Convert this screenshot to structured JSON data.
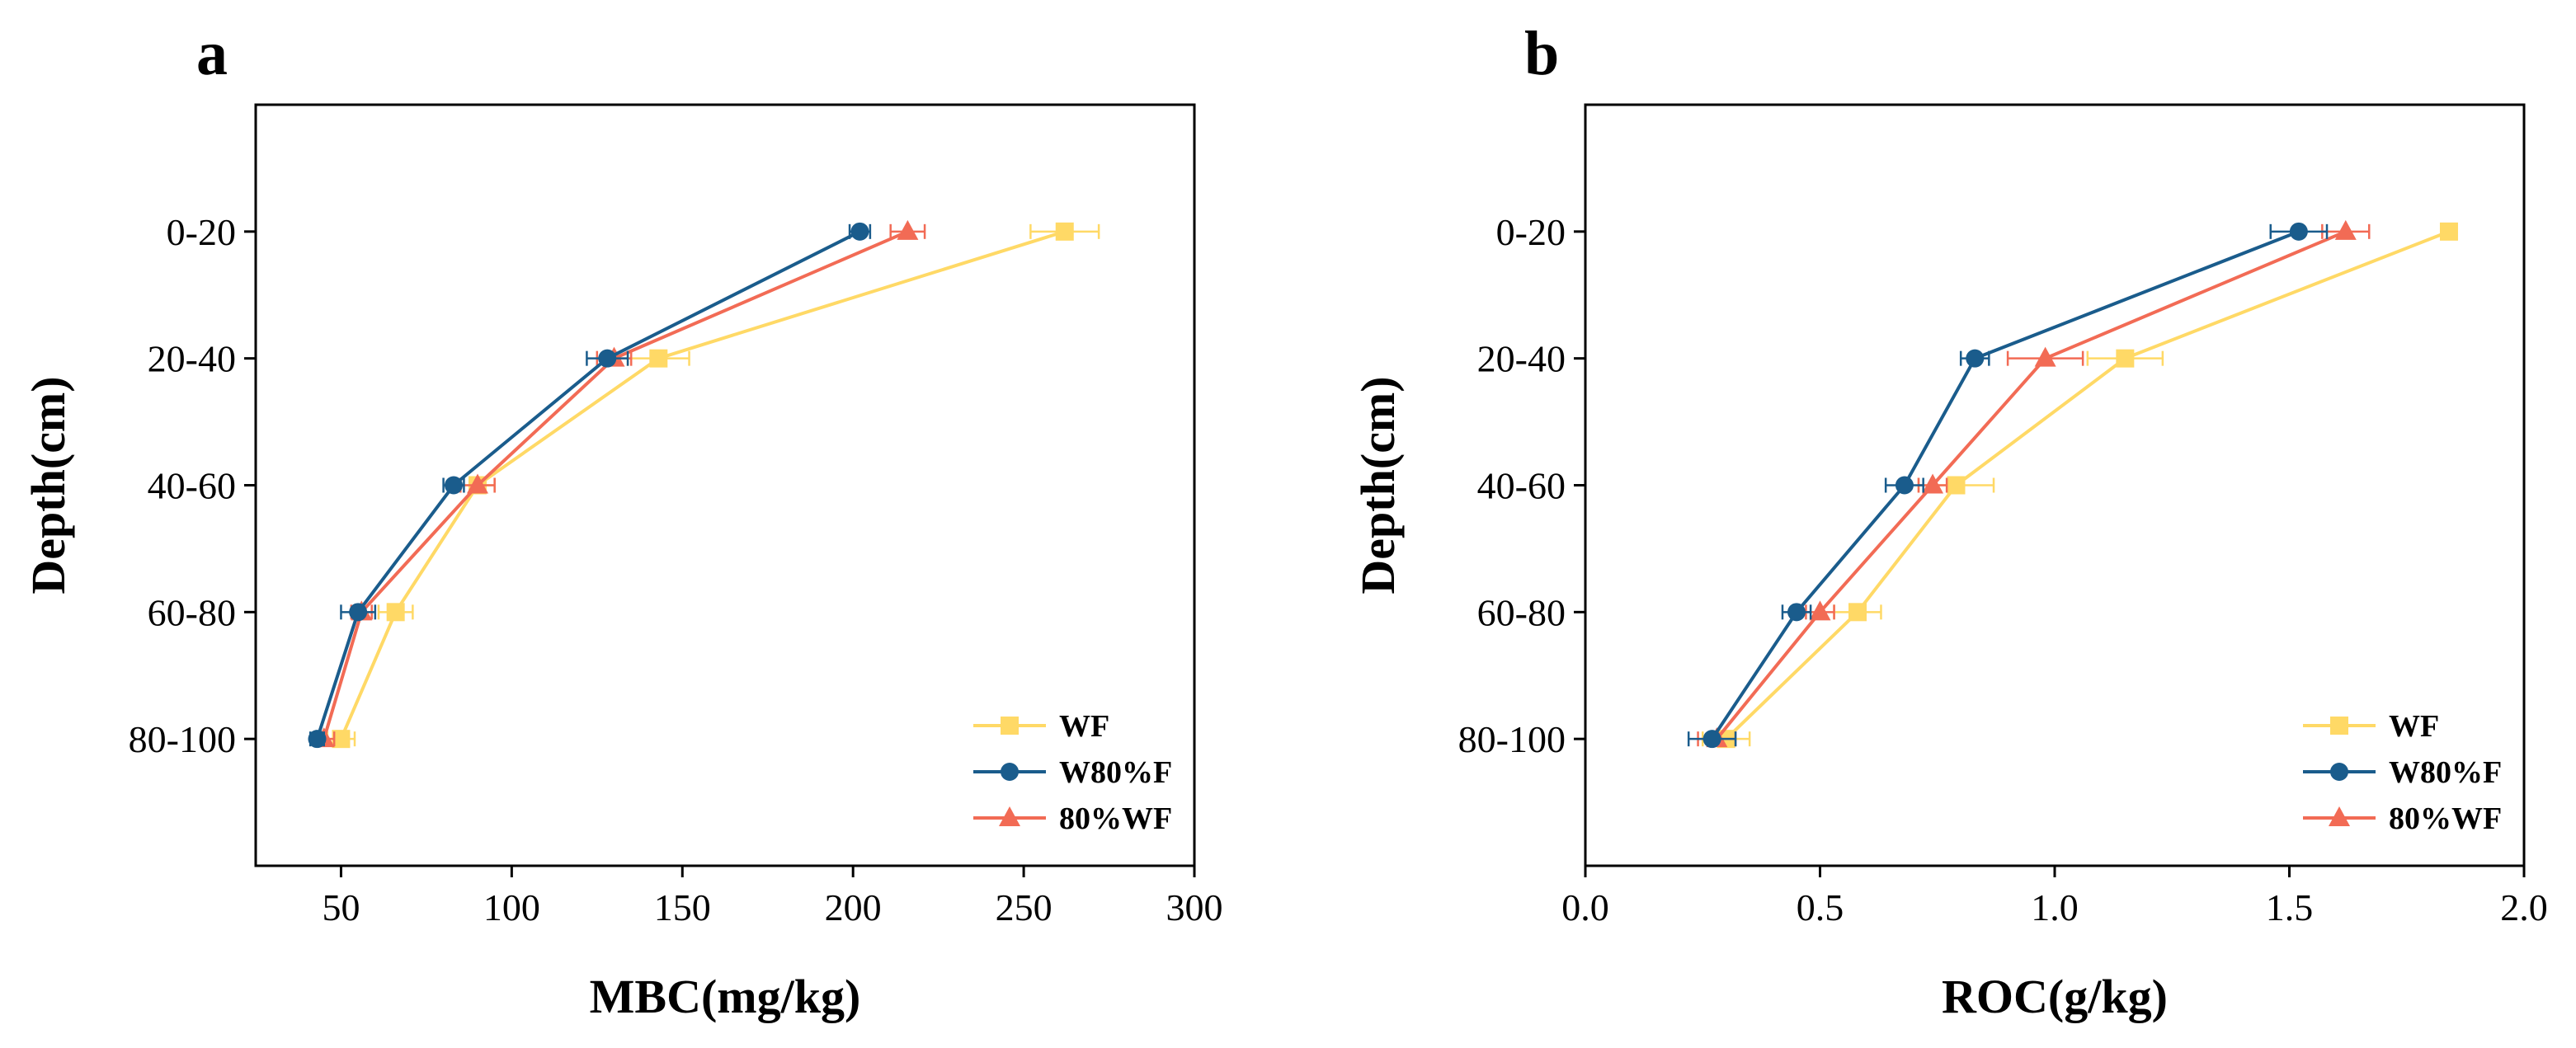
{
  "figure": {
    "colors": {
      "WF": "#FFD966",
      "W80%F": "#1A5C8C",
      "80%WF": "#F26B55"
    },
    "panels": [
      {
        "letter": "a"
      },
      {
        "letter": "b"
      }
    ]
  },
  "chart_data": [
    {
      "type": "line",
      "panel": "a",
      "title": "",
      "xlabel": "MBC(mg/kg)",
      "ylabel": "Depth(cm)",
      "xlim": [
        25,
        300
      ],
      "xticks": [
        50,
        100,
        150,
        200,
        250,
        300
      ],
      "categories": [
        "0-20",
        "20-40",
        "40-60",
        "60-80",
        "80-100"
      ],
      "orientation": "horizontal-values-vertical-categories",
      "legend_position": "bottom-right",
      "series": [
        {
          "name": "WF",
          "marker": "square",
          "values": [
            262,
            143,
            90,
            66,
            50
          ],
          "errors": [
            10,
            9,
            5,
            5,
            4
          ]
        },
        {
          "name": "W80%F",
          "marker": "circle",
          "values": [
            202,
            128,
            83,
            55,
            43
          ],
          "errors": [
            3,
            6,
            3,
            5,
            2
          ]
        },
        {
          "name": "80%WF",
          "marker": "triangle",
          "values": [
            216,
            130,
            90,
            56,
            45
          ],
          "errors": [
            5,
            5,
            5,
            3,
            3
          ]
        }
      ]
    },
    {
      "type": "line",
      "panel": "b",
      "title": "",
      "xlabel": "ROC(g/kg)",
      "ylabel": "Depth(cm)",
      "xlim": [
        0.0,
        2.0
      ],
      "xticks": [
        "0.0",
        "0.5",
        "1.0",
        "1.5",
        "2.0"
      ],
      "categories": [
        "0-20",
        "20-40",
        "40-60",
        "60-80",
        "80-100"
      ],
      "orientation": "horizontal-values-vertical-categories",
      "legend_position": "bottom-right",
      "series": [
        {
          "name": "WF",
          "marker": "square",
          "values": [
            1.84,
            1.15,
            0.79,
            0.58,
            0.3
          ],
          "errors": [
            0.01,
            0.08,
            0.08,
            0.05,
            0.05
          ]
        },
        {
          "name": "W80%F",
          "marker": "circle",
          "values": [
            1.52,
            0.83,
            0.68,
            0.45,
            0.27
          ],
          "errors": [
            0.06,
            0.03,
            0.04,
            0.03,
            0.05
          ]
        },
        {
          "name": "80%WF",
          "marker": "triangle",
          "values": [
            1.62,
            0.98,
            0.74,
            0.5,
            0.28
          ],
          "errors": [
            0.05,
            0.08,
            0.03,
            0.03,
            0.04
          ]
        }
      ]
    }
  ]
}
